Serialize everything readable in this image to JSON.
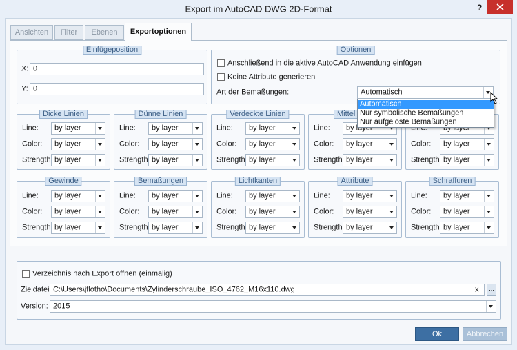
{
  "window": {
    "title": "Export im AutoCAD DWG 2D-Format",
    "help": "?"
  },
  "tabs": [
    "Ansichten",
    "Filter",
    "Ebenen",
    "Exportoptionen"
  ],
  "active_tab": 3,
  "insert_position": {
    "title": "Einfügeposition",
    "fields": [
      {
        "label": "X:",
        "value": "0"
      },
      {
        "label": "Y:",
        "value": "0"
      }
    ]
  },
  "options": {
    "title": "Optionen",
    "checkboxes": [
      "Anschließend in die aktive AutoCAD Anwendung einfügen",
      "Keine Attribute generieren"
    ],
    "dimension_label": "Art der Bemaßungen:",
    "dimension_value": "Automatisch",
    "dropdown_items": [
      "Automatisch",
      "Nur symbolische Bemaßungen",
      "Nur aufgelöste Bemaßungen"
    ],
    "highlighted_item": 0
  },
  "line_groups": [
    {
      "title": "Dicke Linien",
      "fields": [
        {
          "label": "Line:",
          "value": "by layer"
        },
        {
          "label": "Color:",
          "value": "by layer"
        },
        {
          "label": "Strength:",
          "value": "by layer"
        }
      ]
    },
    {
      "title": "Dünne Linien",
      "fields": [
        {
          "label": "Line:",
          "value": "by layer"
        },
        {
          "label": "Color:",
          "value": "by layer"
        },
        {
          "label": "Strength:",
          "value": "by layer"
        }
      ]
    },
    {
      "title": "Verdeckte Linien",
      "fields": [
        {
          "label": "Line:",
          "value": "by layer"
        },
        {
          "label": "Color:",
          "value": "by layer"
        },
        {
          "label": "Strength:",
          "value": "by layer"
        }
      ]
    },
    {
      "title": "Mittellinien",
      "fields": [
        {
          "label": "Line:",
          "value": "by layer"
        },
        {
          "label": "Color:",
          "value": "by layer"
        },
        {
          "label": "Strength:",
          "value": "by layer"
        }
      ]
    },
    {
      "fields": [
        {
          "label": "Line:",
          "value": "by layer"
        },
        {
          "label": "Color:",
          "value": "by layer"
        },
        {
          "label": "Strength:",
          "value": "by layer"
        }
      ]
    },
    {
      "title": "Gewinde",
      "fields": [
        {
          "label": "Line:",
          "value": "by layer"
        },
        {
          "label": "Color:",
          "value": "by layer"
        },
        {
          "label": "Strength:",
          "value": "by layer"
        }
      ]
    },
    {
      "title": "Bemaßungen",
      "fields": [
        {
          "label": "Line:",
          "value": "by layer"
        },
        {
          "label": "Color:",
          "value": "by layer"
        },
        {
          "label": "Strength:",
          "value": "by layer"
        }
      ]
    },
    {
      "title": "Lichtkanten",
      "fields": [
        {
          "label": "Line:",
          "value": "by layer"
        },
        {
          "label": "Color:",
          "value": "by layer"
        },
        {
          "label": "Strength:",
          "value": "by layer"
        }
      ]
    },
    {
      "title": "Attribute",
      "fields": [
        {
          "label": "Line:",
          "value": "by layer"
        },
        {
          "label": "Color:",
          "value": "by layer"
        },
        {
          "label": "Strength:",
          "value": "by layer"
        }
      ]
    },
    {
      "title": "Schraffuren",
      "fields": [
        {
          "label": "Line:",
          "value": "by layer"
        },
        {
          "label": "Color:",
          "value": "by layer"
        },
        {
          "label": "Strength:",
          "value": "by layer"
        }
      ]
    }
  ],
  "export": {
    "open_folder": "Verzeichnis nach Export öffnen (einmalig)",
    "target_label": "Zieldatei:",
    "target_value": "C:\\Users\\jflotho\\Documents\\Zylinderschraube_ISO_4762_M16x110.dwg",
    "clear": "x",
    "browse": "...",
    "version_label": "Version:",
    "version_value": "2015"
  },
  "buttons": {
    "ok": "Ok",
    "cancel": "Abbrechen"
  }
}
